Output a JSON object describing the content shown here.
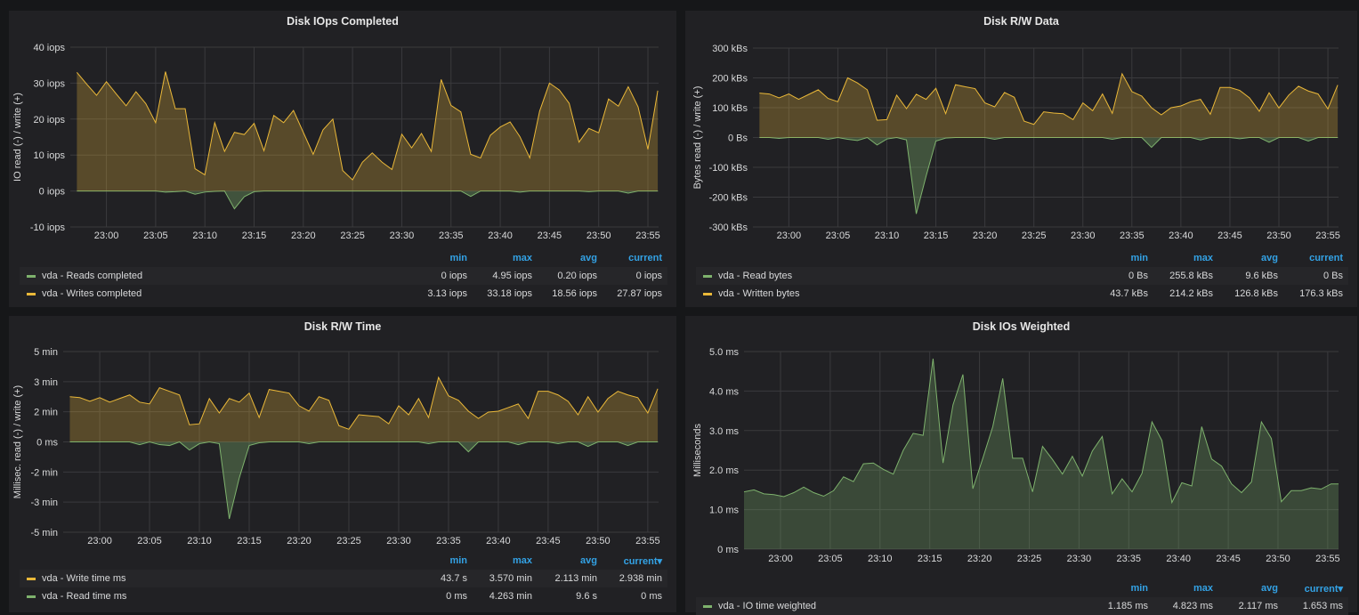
{
  "colors": {
    "background": "#161719",
    "panel": "#212124",
    "write": "#eab839",
    "read": "#7eb26d",
    "legend_header": "#33a2e5",
    "grid": "#3a3a3d",
    "text": "#d8d9da"
  },
  "legend_headers": {
    "min": "min",
    "max": "max",
    "avg": "avg",
    "current": "current",
    "current_sorted": "current▾"
  },
  "chart_data": [
    {
      "type": "area",
      "title": "Disk IOps Completed",
      "ylabel": "IO read (-) / write (+)",
      "ylim": [
        -10,
        40
      ],
      "yticks": [
        "40 iops",
        "30 iops",
        "20 iops",
        "10 iops",
        "0 iops",
        "-10 iops"
      ],
      "xlim": [
        "22:56:20",
        "23:56:05"
      ],
      "xticks": [
        "23:00",
        "23:05",
        "23:10",
        "23:15",
        "23:20",
        "23:25",
        "23:30",
        "23:35",
        "23:40",
        "23:45",
        "23:50",
        "23:55"
      ],
      "grid": true,
      "legend_position": "bottom",
      "sorted_column": "",
      "x_start": "22:57",
      "x_step_minutes": 1,
      "series": [
        {
          "name": "vda - Reads completed",
          "color": "#7eb26d",
          "direction": "negative-y",
          "values": [
            0,
            0,
            0,
            0,
            0,
            0,
            0,
            0,
            0,
            0.3,
            0.2,
            0,
            0.9,
            0.3,
            0.1,
            0,
            4.95,
            1.6,
            0.2,
            0,
            0,
            0,
            0,
            0,
            0,
            0,
            0,
            0,
            0,
            0,
            0,
            0,
            0,
            0,
            0,
            0,
            0,
            0,
            0,
            0,
            1.5,
            0,
            0,
            0,
            0,
            0.3,
            0,
            0,
            0,
            0,
            0,
            0,
            0.2,
            0,
            0,
            0,
            0.6,
            0,
            0,
            0
          ],
          "legend": {
            "min": "0 iops",
            "max": "4.95 iops",
            "avg": "0.20 iops",
            "current": "0 iops"
          }
        },
        {
          "name": "vda - Writes completed",
          "color": "#eab839",
          "direction": "positive-y",
          "values": [
            33,
            29.7,
            26.6,
            30.4,
            27,
            23.7,
            27.6,
            24.3,
            19,
            33.2,
            22.9,
            22.9,
            6.2,
            4.5,
            19,
            11,
            16.3,
            15.7,
            18.8,
            11.2,
            21,
            19,
            22.4,
            16.3,
            10.2,
            17,
            20,
            5.7,
            3.1,
            8,
            10.6,
            8,
            6,
            15.8,
            12,
            16,
            11,
            31,
            23.8,
            22,
            10.2,
            9.2,
            15.5,
            17.8,
            19.2,
            15.1,
            9.2,
            22.2,
            30,
            28.1,
            24.4,
            13.6,
            17.4,
            16.2,
            25.6,
            23.6,
            29,
            23.4,
            11.6,
            27.9
          ],
          "legend": {
            "min": "3.13 iops",
            "max": "33.18 iops",
            "avg": "18.56 iops",
            "current": "27.87 iops"
          }
        }
      ]
    },
    {
      "type": "area",
      "title": "Disk R/W Data",
      "ylabel": "Bytes read (-) / write (+)",
      "ylim": [
        -300,
        300
      ],
      "yticks": [
        "300 kBs",
        "200 kBs",
        "100 kBs",
        "0 Bs",
        "-100 kBs",
        "-200 kBs",
        "-300 kBs"
      ],
      "xlim": [
        "22:56:20",
        "23:56:05"
      ],
      "xticks": [
        "23:00",
        "23:05",
        "23:10",
        "23:15",
        "23:20",
        "23:25",
        "23:30",
        "23:35",
        "23:40",
        "23:45",
        "23:50",
        "23:55"
      ],
      "grid": true,
      "legend_position": "bottom",
      "sorted_column": "",
      "x_start": "22:57",
      "x_step_minutes": 1,
      "series": [
        {
          "name": "vda - Read bytes",
          "color": "#7eb26d",
          "direction": "negative-y",
          "values": [
            0,
            0,
            3,
            0,
            0,
            0,
            0,
            6,
            0,
            6,
            10,
            0,
            25,
            5,
            0,
            8,
            256,
            130,
            12,
            2,
            0,
            0,
            0,
            0,
            6,
            0,
            0,
            0,
            0,
            0,
            0,
            0,
            0,
            0,
            0,
            0,
            6,
            0,
            0,
            0,
            33,
            0,
            0,
            0,
            0,
            8,
            0,
            0,
            0,
            4,
            0,
            0,
            16,
            0,
            0,
            0,
            12,
            0,
            0,
            0
          ],
          "legend": {
            "min": "0 Bs",
            "max": "255.8 kBs",
            "avg": "9.6 kBs",
            "current": "0 Bs"
          }
        },
        {
          "name": "vda - Written bytes",
          "color": "#eab839",
          "direction": "positive-y",
          "values": [
            149,
            146,
            133,
            146,
            128,
            144,
            160,
            131,
            120,
            200,
            183,
            160,
            58,
            60,
            142,
            97,
            145,
            128,
            165,
            80,
            177,
            170,
            164,
            116,
            103,
            151,
            135,
            55,
            44,
            86,
            82,
            80,
            60,
            116,
            90,
            146,
            81,
            214,
            154,
            139,
            100,
            76,
            100,
            106,
            120,
            128,
            78,
            168,
            168,
            158,
            133,
            88,
            150,
            99,
            142,
            172,
            156,
            146,
            96,
            176
          ],
          "legend": {
            "min": "43.7 kBs",
            "max": "214.2 kBs",
            "avg": "126.8 kBs",
            "current": "176.3 kBs"
          }
        }
      ]
    },
    {
      "type": "area",
      "title": "Disk R/W Time",
      "ylabel": "Millisec. read (-) / write (+)",
      "ylim": [
        -5,
        5
      ],
      "yticks": [
        "5 min",
        "3 min",
        "2 min",
        "0 ms",
        "-2 min",
        "-3 min",
        "-5 min"
      ],
      "xlim": [
        "22:56:20",
        "23:56:05"
      ],
      "xticks": [
        "23:00",
        "23:05",
        "23:10",
        "23:15",
        "23:20",
        "23:25",
        "23:30",
        "23:35",
        "23:40",
        "23:45",
        "23:50",
        "23:55"
      ],
      "grid": true,
      "legend_position": "bottom",
      "sorted_column": "current",
      "x_start": "22:57",
      "x_step_minutes": 1,
      "series": [
        {
          "name": "vda - Write time ms",
          "color": "#eab839",
          "direction": "positive-y",
          "values": [
            2.5,
            2.45,
            2.25,
            2.45,
            2.2,
            2.4,
            2.6,
            2.2,
            2.1,
            3.0,
            2.8,
            2.6,
            0.95,
            1.0,
            2.4,
            1.6,
            2.4,
            2.2,
            2.7,
            1.35,
            2.9,
            2.8,
            2.7,
            2.0,
            1.7,
            2.5,
            2.3,
            0.9,
            0.7,
            1.5,
            1.45,
            1.4,
            1.0,
            2.0,
            1.5,
            2.4,
            1.35,
            3.57,
            2.55,
            2.3,
            1.7,
            1.3,
            1.65,
            1.7,
            1.9,
            2.1,
            1.3,
            2.8,
            2.8,
            2.6,
            2.25,
            1.5,
            2.5,
            1.65,
            2.4,
            2.8,
            2.6,
            2.45,
            1.6,
            2.94
          ],
          "legend": {
            "min": "43.7 s",
            "max": "3.570 min",
            "avg": "2.113 min",
            "current": "2.938 min"
          }
        },
        {
          "name": "vda - Read time ms",
          "color": "#7eb26d",
          "direction": "negative-y",
          "values": [
            0,
            0,
            0,
            0,
            0,
            0,
            0,
            0.15,
            0,
            0.15,
            0.2,
            0,
            0.45,
            0.1,
            0,
            0.1,
            4.26,
            2.0,
            0.2,
            0.05,
            0,
            0,
            0,
            0,
            0.1,
            0,
            0,
            0,
            0,
            0,
            0,
            0,
            0,
            0,
            0,
            0,
            0.1,
            0,
            0,
            0,
            0.55,
            0,
            0,
            0,
            0,
            0.15,
            0,
            0,
            0,
            0.1,
            0,
            0,
            0.25,
            0,
            0,
            0,
            0.2,
            0,
            0,
            0
          ],
          "legend": {
            "min": "0 ms",
            "max": "4.263 min",
            "avg": "9.6 s",
            "current": "0 ms"
          }
        }
      ]
    },
    {
      "type": "area",
      "title": "Disk IOs Weighted",
      "ylabel": "Milliseconds",
      "ylim": [
        0,
        5
      ],
      "yticks": [
        "5.0 ms",
        "4.0 ms",
        "3.0 ms",
        "2.0 ms",
        "1.0 ms",
        "0 ms"
      ],
      "xlim": [
        "22:56:20",
        "23:56:05"
      ],
      "xticks": [
        "23:00",
        "23:05",
        "23:10",
        "23:15",
        "23:20",
        "23:25",
        "23:30",
        "23:35",
        "23:40",
        "23:45",
        "23:50",
        "23:55"
      ],
      "grid": true,
      "legend_position": "bottom",
      "sorted_column": "current",
      "x_start": "22:56:20",
      "x_step_minutes": 1,
      "series": [
        {
          "name": "vda - IO time weighted",
          "color": "#7eb26d",
          "direction": "positive-y",
          "values": [
            1.45,
            1.5,
            1.4,
            1.38,
            1.33,
            1.43,
            1.57,
            1.43,
            1.34,
            1.48,
            1.83,
            1.71,
            2.16,
            2.18,
            2.02,
            1.9,
            2.5,
            2.93,
            2.88,
            4.82,
            2.18,
            3.65,
            4.42,
            1.53,
            2.3,
            3.1,
            4.32,
            2.3,
            2.3,
            1.45,
            2.6,
            2.27,
            1.9,
            2.35,
            1.85,
            2.48,
            2.85,
            1.4,
            1.78,
            1.45,
            1.92,
            3.22,
            2.75,
            1.18,
            1.68,
            1.6,
            3.1,
            2.28,
            2.1,
            1.65,
            1.43,
            1.7,
            3.22,
            2.8,
            1.2,
            1.48,
            1.48,
            1.55,
            1.52,
            1.65,
            1.65
          ],
          "legend": {
            "min": "1.185 ms",
            "max": "4.823 ms",
            "avg": "2.117 ms",
            "current": "1.653 ms"
          }
        }
      ]
    }
  ]
}
